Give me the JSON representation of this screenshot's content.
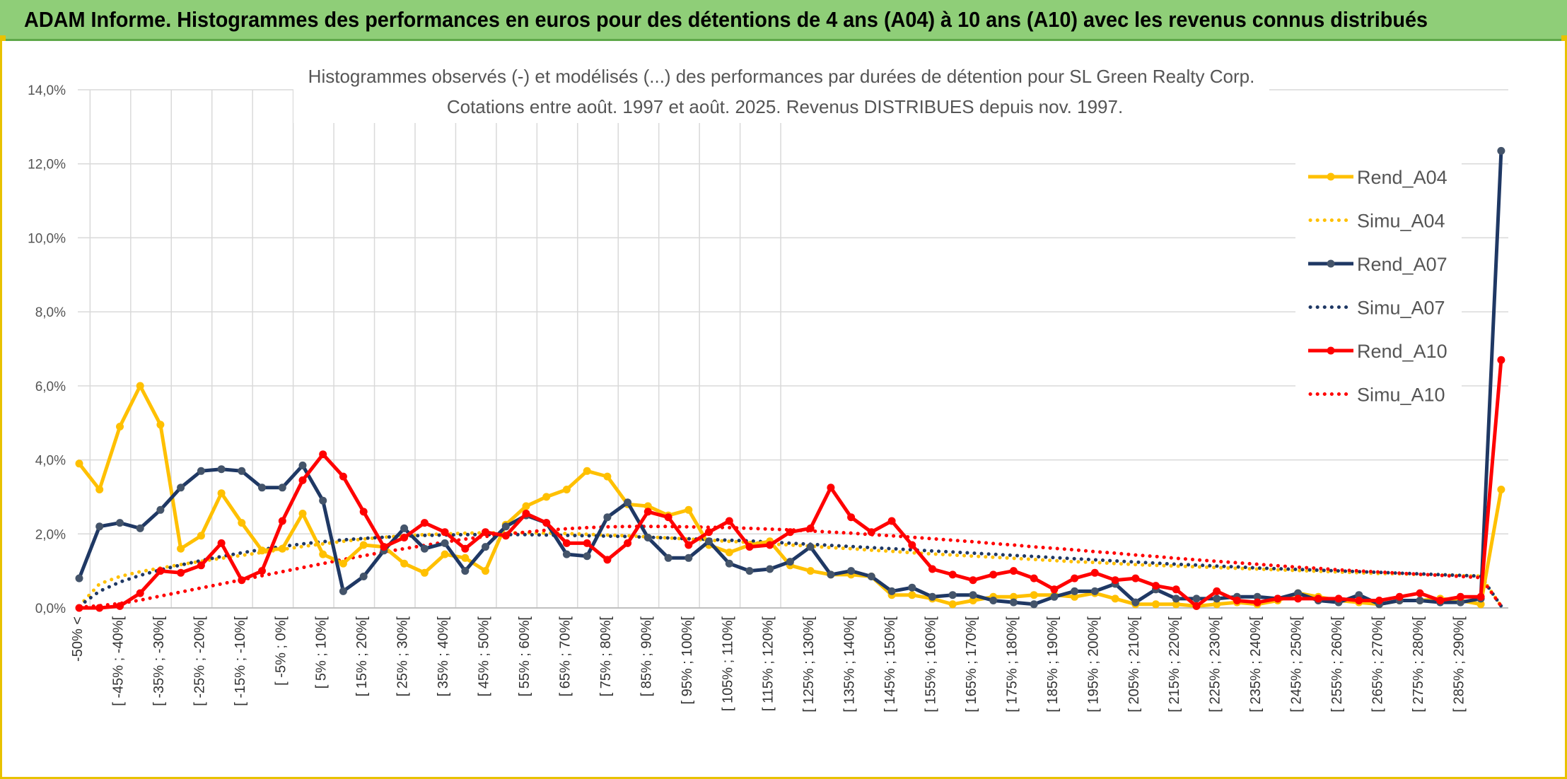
{
  "banner": {
    "title": "ADAM Informe. Histogrammes des performances en euros pour des détentions de 4 ans (A04) à 10 ans (A10) avec les revenus connus distribués"
  },
  "colors": {
    "banner_bg": "#8fce78",
    "frame": "#e8c200",
    "A04": "#ffc000",
    "A07": "#1f3864",
    "A10": "#ff0000"
  },
  "chart_data": {
    "type": "line",
    "title_line1": "Histogrammes observés (-) et modélisés (...) des performances par durées de détention pour SL Green Realty Corp.",
    "title_line2": "Cotations entre août. 1997 et août. 2025. Revenus DISTRIBUES depuis nov. 1997.",
    "y_ticks": [
      "0,0%",
      "2,0%",
      "4,0%",
      "6,0%",
      "8,0%",
      "10,0%",
      "12,0%",
      "14,0%"
    ],
    "ylim": [
      0,
      14
    ],
    "grid": true,
    "legend_position": "right",
    "x_tick_labels": [
      "-50% <",
      "[ -45% ; -40%[",
      "[ -35% ; -30%[",
      "[ -25% ; -20%[",
      "[ -15% ; -10%[",
      "[ -5% ; 0%[",
      "[ 5% ; 10%[",
      "[ 15% ; 20%[",
      "[ 25% ; 30%[",
      "[ 35% ; 40%[",
      "[ 45% ; 50%[",
      "[ 55% ; 60%[",
      "[ 65% ; 70%[",
      "[ 75% ; 80%[",
      "[ 85% ; 90%[",
      "[ 95% ; 100%[",
      "[ 105% ; 110%[",
      "[ 115% ; 120%[",
      "[ 125% ; 130%[",
      "[ 135% ; 140%[",
      "[ 145% ; 150%[",
      "[ 155% ; 160%[",
      "[ 165% ; 170%[",
      "[ 175% ; 180%[",
      "[ 185% ; 190%[",
      "[ 195% ; 200%[",
      "[ 205% ; 210%[",
      "[ 215% ; 220%[",
      "[ 225% ; 230%[",
      "[ 235% ; 240%[",
      "[ 245% ; 250%[",
      "[ 255% ; 260%[",
      "[ 265% ; 270%[",
      "[ 275% ; 280%[",
      "[ 285% ; 290%["
    ],
    "series": [
      {
        "name": "Rend_A04",
        "key": "A04",
        "style": "solid",
        "values": [
          3.9,
          3.2,
          4.9,
          6.0,
          4.95,
          1.6,
          1.95,
          3.1,
          2.3,
          1.55,
          1.6,
          2.55,
          1.45,
          1.2,
          1.7,
          1.65,
          1.2,
          0.95,
          1.45,
          1.35,
          1.0,
          2.25,
          2.75,
          3.0,
          3.2,
          3.7,
          3.55,
          2.8,
          2.75,
          2.5,
          2.65,
          1.7,
          1.5,
          1.7,
          1.8,
          1.15,
          1.0,
          0.9,
          0.9,
          0.85,
          0.35,
          0.35,
          0.25,
          0.1,
          0.2,
          0.3,
          0.3,
          0.35,
          0.35,
          0.3,
          0.4,
          0.25,
          0.1,
          0.1,
          0.1,
          0.05,
          0.1,
          0.15,
          0.1,
          0.2,
          0.4,
          0.3,
          0.2,
          0.15,
          0.1,
          0.2,
          0.2,
          0.25,
          0.2,
          0.1,
          3.2
        ]
      },
      {
        "name": "Simu_A04",
        "key": "A04",
        "style": "dotted",
        "values": [
          0.05,
          0.65,
          0.85,
          0.98,
          1.08,
          1.17,
          1.26,
          1.34,
          1.42,
          1.5,
          1.58,
          1.66,
          1.73,
          1.8,
          1.86,
          1.91,
          1.95,
          1.98,
          2.0,
          2.02,
          2.03,
          2.03,
          2.03,
          2.02,
          2.01,
          1.99,
          1.97,
          1.95,
          1.92,
          1.89,
          1.86,
          1.83,
          1.8,
          1.77,
          1.73,
          1.7,
          1.67,
          1.63,
          1.6,
          1.56,
          1.53,
          1.49,
          1.46,
          1.43,
          1.4,
          1.37,
          1.34,
          1.31,
          1.28,
          1.25,
          1.23,
          1.2,
          1.17,
          1.15,
          1.13,
          1.11,
          1.09,
          1.07,
          1.05,
          1.03,
          1.01,
          0.99,
          0.97,
          0.95,
          0.93,
          0.92,
          0.9,
          0.89,
          0.87,
          0.86,
          0.05
        ]
      },
      {
        "name": "Rend_A07",
        "key": "A07",
        "style": "solid",
        "values": [
          0.8,
          2.2,
          2.3,
          2.15,
          2.65,
          3.25,
          3.7,
          3.75,
          3.7,
          3.25,
          3.25,
          3.85,
          2.9,
          0.45,
          0.85,
          1.55,
          2.15,
          1.6,
          1.75,
          1.0,
          1.65,
          2.2,
          2.5,
          2.3,
          1.45,
          1.4,
          2.45,
          2.85,
          1.9,
          1.35,
          1.35,
          1.8,
          1.2,
          1.0,
          1.05,
          1.25,
          1.65,
          0.9,
          1.0,
          0.85,
          0.45,
          0.55,
          0.3,
          0.35,
          0.35,
          0.2,
          0.15,
          0.1,
          0.3,
          0.45,
          0.45,
          0.65,
          0.15,
          0.5,
          0.25,
          0.25,
          0.25,
          0.3,
          0.3,
          0.25,
          0.4,
          0.2,
          0.15,
          0.35,
          0.1,
          0.2,
          0.2,
          0.15,
          0.15,
          0.25,
          12.35
        ]
      },
      {
        "name": "Simu_A07",
        "key": "A07",
        "style": "dotted",
        "values": [
          0.05,
          0.45,
          0.7,
          0.88,
          1.03,
          1.16,
          1.28,
          1.39,
          1.49,
          1.58,
          1.66,
          1.73,
          1.79,
          1.84,
          1.88,
          1.91,
          1.94,
          1.96,
          1.97,
          1.98,
          1.98,
          1.98,
          1.98,
          1.97,
          1.96,
          1.95,
          1.94,
          1.93,
          1.91,
          1.89,
          1.87,
          1.85,
          1.83,
          1.81,
          1.78,
          1.75,
          1.72,
          1.69,
          1.66,
          1.63,
          1.6,
          1.57,
          1.54,
          1.51,
          1.48,
          1.45,
          1.42,
          1.39,
          1.36,
          1.33,
          1.3,
          1.27,
          1.24,
          1.21,
          1.18,
          1.16,
          1.13,
          1.11,
          1.08,
          1.06,
          1.04,
          1.02,
          1.0,
          0.98,
          0.96,
          0.94,
          0.92,
          0.9,
          0.88,
          0.86,
          0.05
        ]
      },
      {
        "name": "Rend_A10",
        "key": "A10",
        "style": "solid",
        "values": [
          0.0,
          0.0,
          0.05,
          0.4,
          1.0,
          0.95,
          1.15,
          1.75,
          0.75,
          1.0,
          2.35,
          3.45,
          4.15,
          3.55,
          2.6,
          1.65,
          1.9,
          2.3,
          2.05,
          1.6,
          2.05,
          1.95,
          2.55,
          2.3,
          1.75,
          1.75,
          1.3,
          1.75,
          2.6,
          2.45,
          1.7,
          2.05,
          2.35,
          1.65,
          1.7,
          2.05,
          2.15,
          3.25,
          2.45,
          2.05,
          2.35,
          1.7,
          1.05,
          0.9,
          0.75,
          0.9,
          1.0,
          0.8,
          0.5,
          0.8,
          0.95,
          0.75,
          0.8,
          0.6,
          0.5,
          0.05,
          0.45,
          0.2,
          0.15,
          0.25,
          0.25,
          0.25,
          0.25,
          0.2,
          0.2,
          0.3,
          0.4,
          0.2,
          0.3,
          0.3,
          6.7
        ]
      },
      {
        "name": "Simu_A10",
        "key": "A10",
        "style": "dotted",
        "values": [
          0.02,
          0.06,
          0.12,
          0.21,
          0.32,
          0.43,
          0.54,
          0.65,
          0.76,
          0.87,
          0.98,
          1.09,
          1.2,
          1.31,
          1.41,
          1.51,
          1.6,
          1.69,
          1.78,
          1.86,
          1.93,
          1.99,
          2.05,
          2.1,
          2.14,
          2.17,
          2.19,
          2.2,
          2.2,
          2.2,
          2.19,
          2.18,
          2.17,
          2.15,
          2.13,
          2.11,
          2.08,
          2.05,
          2.02,
          1.98,
          1.95,
          1.91,
          1.87,
          1.83,
          1.79,
          1.74,
          1.7,
          1.65,
          1.61,
          1.57,
          1.52,
          1.48,
          1.43,
          1.39,
          1.34,
          1.3,
          1.26,
          1.22,
          1.18,
          1.14,
          1.1,
          1.07,
          1.03,
          1.0,
          0.97,
          0.94,
          0.91,
          0.88,
          0.85,
          0.82,
          0.05
        ]
      }
    ]
  }
}
